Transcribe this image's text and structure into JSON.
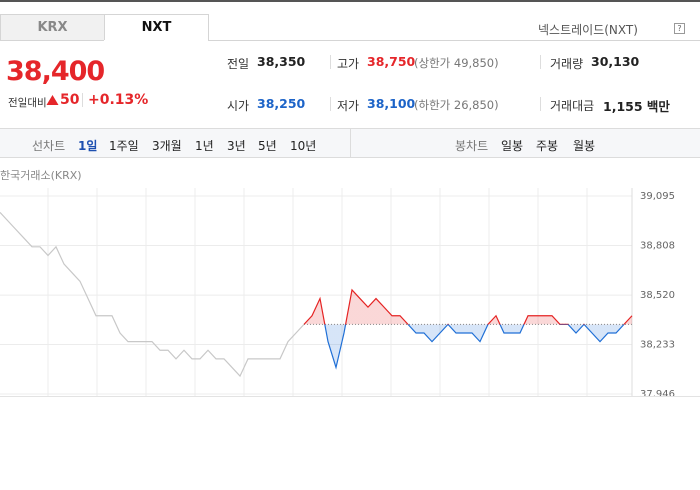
{
  "tabs": [
    "KRX",
    "NXT"
  ],
  "active_tab_index": 1,
  "market_name": "넥스트레이드(NXT)",
  "help_icon": "?",
  "price": "38,400",
  "change_label": "전일대비",
  "change": "50",
  "change_rate": "+0.13%",
  "stats": [
    {
      "label": "전일",
      "value": "38,350"
    },
    {
      "label": "고가",
      "value": "38,750",
      "note": "(상한가 49,850)"
    },
    {
      "label": "거래량",
      "value": "30,130"
    },
    {
      "label": "시가",
      "value": "38,250"
    },
    {
      "label": "저가",
      "value": "38,100",
      "note": "(하한가 26,850)"
    },
    {
      "label": "거래대금",
      "value": "1,155 백만"
    }
  ],
  "line_chart_label": "선차트",
  "line_periods": [
    "1일",
    "1주일",
    "3개월",
    "1년",
    "3년",
    "5년",
    "10년"
  ],
  "active_period_index": 0,
  "candle_chart_label": "봉차트",
  "candle_periods": [
    "일봉",
    "주봉",
    "월봉"
  ],
  "chart_data": {
    "type": "line",
    "title": "한국거래소(KRX)",
    "series": [
      {
        "color": "#c8c8c8",
        "values": [
          39000,
          38950,
          38900,
          38850,
          38800,
          38800,
          38750,
          38800,
          38700,
          38650,
          38600,
          38500,
          38400,
          38400,
          38400,
          38300,
          38250,
          38250,
          38250,
          38250,
          38200,
          38200,
          38150,
          38200,
          38150,
          38150,
          38200,
          38150,
          38150,
          38100,
          38050,
          38150,
          38150,
          38150,
          38150,
          38150,
          38250,
          38300,
          38350,
          null,
          null,
          null,
          null,
          null,
          null,
          null,
          null,
          null,
          null,
          null,
          null,
          null,
          null,
          null,
          null,
          null,
          null,
          null,
          null,
          null,
          null,
          null,
          null,
          null,
          null,
          null,
          null,
          null,
          null,
          null,
          null,
          null,
          null,
          null,
          null,
          null,
          null,
          null,
          null,
          null
        ]
      },
      {
        "color_up": "#e52323",
        "color_down": "#1f6fd6",
        "values": [
          null,
          null,
          null,
          null,
          null,
          null,
          null,
          null,
          null,
          null,
          null,
          null,
          null,
          null,
          null,
          null,
          null,
          null,
          null,
          null,
          null,
          null,
          null,
          null,
          null,
          null,
          null,
          null,
          null,
          null,
          null,
          null,
          null,
          null,
          null,
          null,
          null,
          null,
          38350,
          38400,
          38500,
          38250,
          38100,
          38300,
          38550,
          38500,
          38450,
          38500,
          38450,
          38400,
          38400,
          38350,
          38300,
          38300,
          38250,
          38300,
          38350,
          38300,
          38300,
          38300,
          38250,
          38350,
          38400,
          38300,
          38300,
          38300,
          38400,
          38400,
          38400,
          38400,
          38350,
          38350,
          38300,
          38350,
          38300,
          38250,
          38300,
          38300,
          38350,
          38400
        ]
      }
    ],
    "baseline": 38350,
    "ylim": [
      37946,
      39095
    ],
    "yticks": [
      {
        "value": 39095,
        "label": "39,095"
      },
      {
        "value": 38808,
        "label": "38,808"
      },
      {
        "value": 38520,
        "label": "38,520"
      },
      {
        "value": 38233,
        "label": "38,233"
      },
      {
        "value": 37946,
        "label": "37,946"
      }
    ],
    "grid": true
  }
}
